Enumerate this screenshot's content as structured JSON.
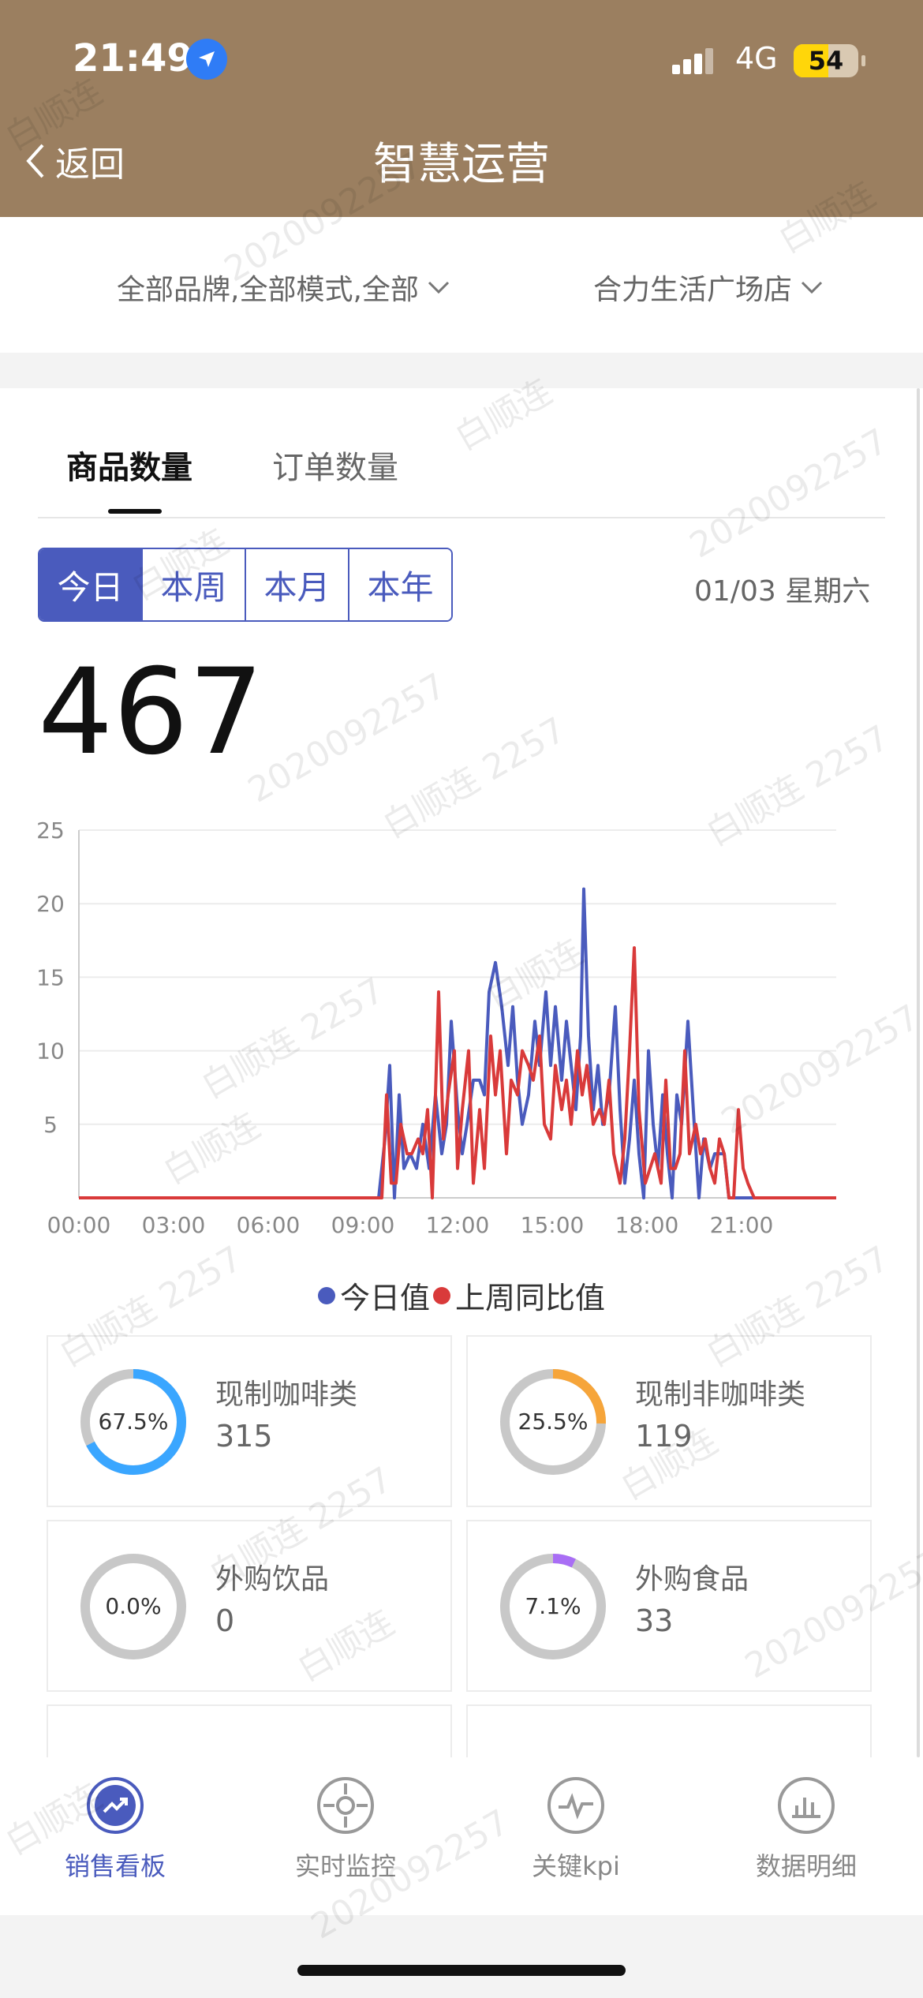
{
  "status_bar": {
    "time": "21:49",
    "network": "4G",
    "battery": "54",
    "battery_level": 0.54
  },
  "nav": {
    "back_label": "返回",
    "title": "智慧运营"
  },
  "filters": {
    "brand_filter": "全部品牌,全部模式,全部",
    "store_filter": "合力生活广场店"
  },
  "tabs": [
    {
      "label": "商品数量",
      "active": true
    },
    {
      "label": "订单数量",
      "active": false
    }
  ],
  "period_buttons": [
    {
      "label": "今日",
      "active": true
    },
    {
      "label": "本周",
      "active": false
    },
    {
      "label": "本月",
      "active": false
    },
    {
      "label": "本年",
      "active": false
    }
  ],
  "date": "01/03 星期六",
  "total": "467",
  "chart_data": {
    "type": "line",
    "x_tick_labels": [
      "00:00",
      "03:00",
      "06:00",
      "09:00",
      "12:00",
      "15:00",
      "18:00",
      "21:00"
    ],
    "y_tick_labels": [
      "5",
      "10",
      "15",
      "20",
      "25"
    ],
    "ylim": [
      0,
      25
    ],
    "xlim_hours": [
      0,
      24
    ],
    "grid": true,
    "legend_position": "bottom",
    "series": [
      {
        "name": "今日值",
        "color": "#4a5bbd",
        "points": [
          [
            0,
            0
          ],
          [
            9.5,
            0
          ],
          [
            9.7,
            4
          ],
          [
            9.85,
            9
          ],
          [
            10.0,
            0
          ],
          [
            10.15,
            7
          ],
          [
            10.3,
            2
          ],
          [
            10.5,
            3
          ],
          [
            10.7,
            2
          ],
          [
            10.9,
            5
          ],
          [
            11.1,
            2
          ],
          [
            11.3,
            7
          ],
          [
            11.5,
            3
          ],
          [
            11.65,
            5
          ],
          [
            11.8,
            12
          ],
          [
            12.0,
            6
          ],
          [
            12.15,
            3
          ],
          [
            12.3,
            5
          ],
          [
            12.5,
            8
          ],
          [
            12.7,
            8
          ],
          [
            12.85,
            7
          ],
          [
            13.0,
            14
          ],
          [
            13.2,
            16
          ],
          [
            13.4,
            13
          ],
          [
            13.6,
            9
          ],
          [
            13.75,
            13
          ],
          [
            13.9,
            8
          ],
          [
            14.05,
            5
          ],
          [
            14.25,
            7
          ],
          [
            14.45,
            12
          ],
          [
            14.6,
            9
          ],
          [
            14.8,
            14
          ],
          [
            14.95,
            9
          ],
          [
            15.1,
            13
          ],
          [
            15.3,
            8
          ],
          [
            15.45,
            12
          ],
          [
            15.6,
            9
          ],
          [
            15.75,
            6
          ],
          [
            15.9,
            11
          ],
          [
            16.0,
            21
          ],
          [
            16.15,
            11
          ],
          [
            16.3,
            6
          ],
          [
            16.45,
            9
          ],
          [
            16.6,
            5
          ],
          [
            16.8,
            7
          ],
          [
            17.0,
            13
          ],
          [
            17.15,
            6
          ],
          [
            17.3,
            1
          ],
          [
            17.45,
            4
          ],
          [
            17.6,
            8
          ],
          [
            17.75,
            3
          ],
          [
            17.9,
            0
          ],
          [
            18.05,
            10
          ],
          [
            18.2,
            5
          ],
          [
            18.35,
            2
          ],
          [
            18.5,
            7
          ],
          [
            18.65,
            3
          ],
          [
            18.8,
            0
          ],
          [
            18.95,
            7
          ],
          [
            19.1,
            5
          ],
          [
            19.3,
            12
          ],
          [
            19.5,
            5
          ],
          [
            19.65,
            0
          ],
          [
            19.8,
            4
          ],
          [
            20.0,
            2
          ],
          [
            20.15,
            3
          ],
          [
            20.3,
            3
          ],
          [
            20.45,
            3
          ],
          [
            20.6,
            0
          ],
          [
            24,
            0
          ]
        ]
      },
      {
        "name": "上周同比值",
        "color": "#d93a3a",
        "points": [
          [
            0,
            0
          ],
          [
            9.6,
            0
          ],
          [
            9.75,
            7
          ],
          [
            9.9,
            1
          ],
          [
            10.05,
            1
          ],
          [
            10.2,
            5
          ],
          [
            10.4,
            3
          ],
          [
            10.55,
            3
          ],
          [
            10.75,
            4
          ],
          [
            10.9,
            3
          ],
          [
            11.05,
            6
          ],
          [
            11.2,
            0
          ],
          [
            11.4,
            14
          ],
          [
            11.55,
            4
          ],
          [
            11.7,
            7
          ],
          [
            11.9,
            10
          ],
          [
            12.0,
            2
          ],
          [
            12.15,
            6
          ],
          [
            12.35,
            10
          ],
          [
            12.5,
            1
          ],
          [
            12.7,
            6
          ],
          [
            12.85,
            2
          ],
          [
            13.05,
            11
          ],
          [
            13.2,
            7
          ],
          [
            13.35,
            10
          ],
          [
            13.55,
            3
          ],
          [
            13.7,
            8
          ],
          [
            13.9,
            7
          ],
          [
            14.05,
            10
          ],
          [
            14.25,
            9
          ],
          [
            14.4,
            8
          ],
          [
            14.6,
            11
          ],
          [
            14.75,
            5
          ],
          [
            14.95,
            4
          ],
          [
            15.1,
            9
          ],
          [
            15.3,
            6
          ],
          [
            15.45,
            8
          ],
          [
            15.6,
            5
          ],
          [
            15.8,
            10
          ],
          [
            15.95,
            7
          ],
          [
            16.1,
            9
          ],
          [
            16.3,
            5
          ],
          [
            16.5,
            6
          ],
          [
            16.65,
            5
          ],
          [
            16.8,
            8
          ],
          [
            16.95,
            3
          ],
          [
            17.15,
            1
          ],
          [
            17.3,
            4
          ],
          [
            17.45,
            10
          ],
          [
            17.6,
            17
          ],
          [
            17.75,
            6
          ],
          [
            17.95,
            1
          ],
          [
            18.1,
            2
          ],
          [
            18.25,
            3
          ],
          [
            18.45,
            1
          ],
          [
            18.6,
            8
          ],
          [
            18.75,
            2
          ],
          [
            18.9,
            2
          ],
          [
            19.05,
            3
          ],
          [
            19.2,
            10
          ],
          [
            19.35,
            3
          ],
          [
            19.55,
            5
          ],
          [
            19.7,
            3
          ],
          [
            19.85,
            4
          ],
          [
            20.0,
            2
          ],
          [
            20.15,
            1
          ],
          [
            20.3,
            4
          ],
          [
            20.45,
            3
          ],
          [
            20.6,
            0
          ],
          [
            20.75,
            0
          ],
          [
            20.9,
            6
          ],
          [
            21.05,
            2
          ],
          [
            21.2,
            1
          ],
          [
            21.4,
            0
          ],
          [
            24,
            0
          ]
        ]
      }
    ]
  },
  "categories": [
    {
      "label": "现制咖啡类",
      "value": "315",
      "percent": "67.5%",
      "fraction": 0.675,
      "color": "#3aa6ff"
    },
    {
      "label": "现制非咖啡类",
      "value": "119",
      "percent": "25.5%",
      "fraction": 0.255,
      "color": "#f6a53a"
    },
    {
      "label": "外购饮品",
      "value": "0",
      "percent": "0.0%",
      "fraction": 0.0,
      "color": "#a96ef5"
    },
    {
      "label": "外购食品",
      "value": "33",
      "percent": "7.1%",
      "fraction": 0.071,
      "color": "#a96ef5"
    }
  ],
  "bottom_nav": [
    {
      "label": "销售看板",
      "icon": "trend-up-icon",
      "active": true
    },
    {
      "label": "实时监控",
      "icon": "crosshair-icon",
      "active": false
    },
    {
      "label": "关键kpi",
      "icon": "pulse-icon",
      "active": false
    },
    {
      "label": "数据明细",
      "icon": "bar-chart-icon",
      "active": false
    }
  ],
  "watermark": {
    "name": "白顺连",
    "id": "2020092257",
    "name_id": "白顺连 2257"
  }
}
